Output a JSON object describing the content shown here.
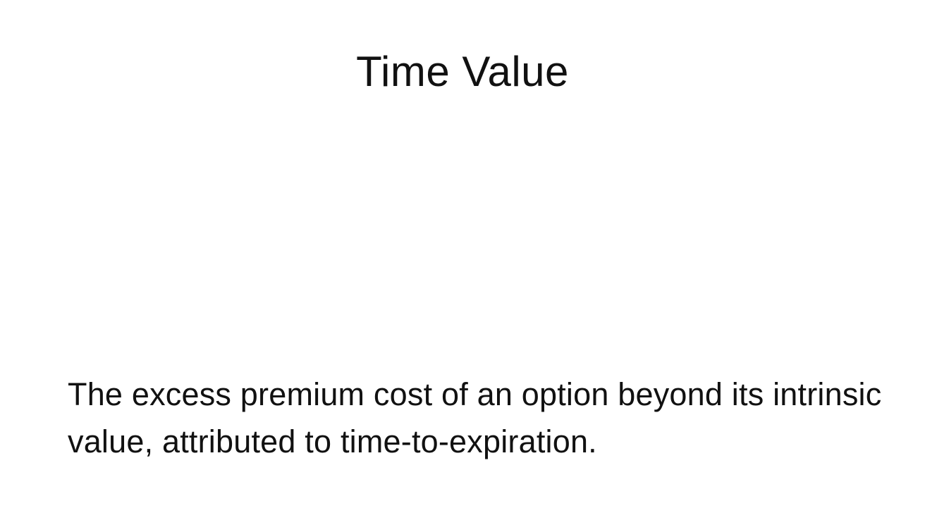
{
  "slide": {
    "title": "Time Value",
    "body": "The excess premium cost of an option beyond its intrinsic value, attributed to time-to-expiration."
  }
}
